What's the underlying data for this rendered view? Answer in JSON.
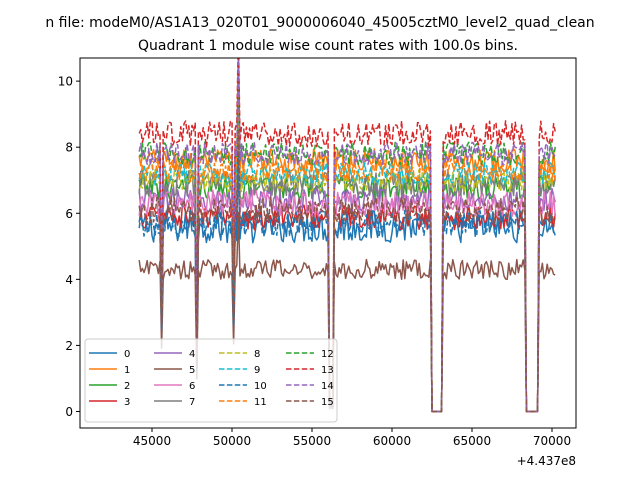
{
  "chart_data": {
    "type": "line",
    "suptitle": "n file: modeM0/AS1A13_020T01_9000006040_45005cztM0_level2_quad_clean",
    "title": "Quadrant 1 module wise count rates with 100.0s bins.",
    "xlabel": "",
    "ylabel": "",
    "x_offset_label": "+4.437e8",
    "xlim": [
      40500,
      71500
    ],
    "ylim": [
      -0.5,
      10.7
    ],
    "xticks": [
      "45000",
      "50000",
      "55000",
      "60000",
      "65000",
      "70000"
    ],
    "yticks": [
      "0",
      "2",
      "4",
      "6",
      "8",
      "10"
    ],
    "x_range": [
      44200,
      70200
    ],
    "bin_width": 100,
    "dips": [
      {
        "x": 45600,
        "width": 100,
        "depth": 0.4
      },
      {
        "x": 47800,
        "width": 100,
        "depth": 0.2
      },
      {
        "x": 50100,
        "width": 120,
        "depth": 0.45
      },
      {
        "x": 56200,
        "width": 250,
        "depth": 0.01
      },
      {
        "x": 62800,
        "width": 650,
        "depth": 0.0
      },
      {
        "x": 68750,
        "width": 700,
        "depth": 0.0
      }
    ],
    "spikes": [
      {
        "x": 50400,
        "factor": 1.35
      },
      {
        "x": 55850,
        "factor": 1.2
      },
      {
        "x": 62250,
        "factor": 1.15
      },
      {
        "x": 68250,
        "factor": 1.1
      }
    ],
    "series": [
      {
        "name": "0",
        "color": "#1f77b4",
        "dash": "solid",
        "mean": 5.6,
        "noise": 0.5
      },
      {
        "name": "1",
        "color": "#ff7f0e",
        "dash": "solid",
        "mean": 7.6,
        "noise": 0.35
      },
      {
        "name": "2",
        "color": "#2ca02c",
        "dash": "solid",
        "mean": 6.8,
        "noise": 0.4
      },
      {
        "name": "3",
        "color": "#d62728",
        "dash": "solid",
        "mean": 5.9,
        "noise": 0.4
      },
      {
        "name": "4",
        "color": "#9467bd",
        "dash": "solid",
        "mean": 6.4,
        "noise": 0.4
      },
      {
        "name": "5",
        "color": "#8c564b",
        "dash": "solid",
        "mean": 4.3,
        "noise": 0.3
      },
      {
        "name": "6",
        "color": "#e377c2",
        "dash": "solid",
        "mean": 6.3,
        "noise": 0.4
      },
      {
        "name": "7",
        "color": "#7f7f7f",
        "dash": "solid",
        "mean": 6.9,
        "noise": 0.4
      },
      {
        "name": "8",
        "color": "#bcbd22",
        "dash": "dashed",
        "mean": 7.0,
        "noise": 0.35
      },
      {
        "name": "9",
        "color": "#17becf",
        "dash": "dashed",
        "mean": 7.2,
        "noise": 0.35
      },
      {
        "name": "10",
        "color": "#1f77b4",
        "dash": "dashed",
        "mean": 5.7,
        "noise": 0.4
      },
      {
        "name": "11",
        "color": "#ff7f0e",
        "dash": "dashed",
        "mean": 7.3,
        "noise": 0.35
      },
      {
        "name": "12",
        "color": "#2ca02c",
        "dash": "dashed",
        "mean": 7.8,
        "noise": 0.35
      },
      {
        "name": "13",
        "color": "#d62728",
        "dash": "dashed",
        "mean": 8.4,
        "noise": 0.4
      },
      {
        "name": "14",
        "color": "#9467bd",
        "dash": "dashed",
        "mean": 7.8,
        "noise": 0.35
      },
      {
        "name": "15",
        "color": "#8c564b",
        "dash": "dashed",
        "mean": 6.1,
        "noise": 0.4
      }
    ],
    "legend_position": "lower-left",
    "legend_columns": 4,
    "grid": false
  }
}
